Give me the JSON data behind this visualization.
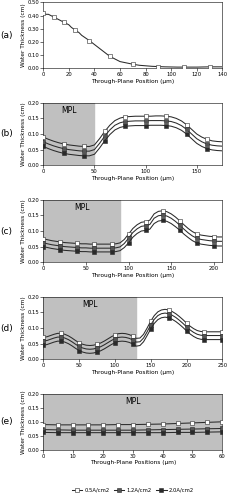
{
  "panel_a": {
    "label": "(a)",
    "xlabel": "Through-Plane Position (μm)",
    "ylabel": "Water Thickness (cm)",
    "xlim": [
      0,
      140
    ],
    "ylim": [
      0,
      0.5
    ],
    "yticks": [
      0.0,
      0.1,
      0.2,
      0.3,
      0.4,
      0.5
    ],
    "xticks": [
      0,
      20,
      40,
      60,
      80,
      100,
      120,
      140
    ],
    "mpl_region": null,
    "x": [
      0,
      2,
      4,
      6,
      8,
      10,
      12,
      14,
      16,
      18,
      20,
      22,
      25,
      28,
      30,
      33,
      36,
      40,
      44,
      48,
      52,
      56,
      60,
      65,
      70,
      75,
      80,
      85,
      90,
      95,
      100,
      105,
      110,
      115,
      120,
      125,
      130,
      135,
      140
    ],
    "curves": [
      [
        0.42,
        0.41,
        0.41,
        0.4,
        0.39,
        0.38,
        0.37,
        0.36,
        0.35,
        0.34,
        0.33,
        0.31,
        0.29,
        0.27,
        0.25,
        0.23,
        0.21,
        0.18,
        0.15,
        0.12,
        0.09,
        0.07,
        0.05,
        0.04,
        0.03,
        0.022,
        0.018,
        0.014,
        0.012,
        0.01,
        0.009,
        0.008,
        0.008,
        0.008,
        0.008,
        0.009,
        0.01,
        0.01,
        0.01
      ]
    ]
  },
  "panel_b": {
    "label": "(b)",
    "xlabel": "Through-Plane Position (μm)",
    "ylabel": "Water Thickness (cm)",
    "xlim": [
      0,
      175
    ],
    "ylim": [
      0,
      0.2
    ],
    "yticks": [
      0.0,
      0.05,
      0.1,
      0.15,
      0.2
    ],
    "xticks": [
      0,
      50,
      100,
      150
    ],
    "mpl_region": [
      0,
      50
    ],
    "x": [
      0,
      5,
      10,
      15,
      20,
      25,
      30,
      35,
      40,
      45,
      50,
      55,
      60,
      65,
      70,
      75,
      80,
      85,
      90,
      95,
      100,
      105,
      110,
      115,
      120,
      125,
      130,
      135,
      140,
      145,
      150,
      155,
      160,
      165,
      170,
      175
    ],
    "curves": [
      [
        0.09,
        0.083,
        0.077,
        0.072,
        0.068,
        0.065,
        0.063,
        0.061,
        0.06,
        0.06,
        0.065,
        0.085,
        0.108,
        0.128,
        0.143,
        0.151,
        0.155,
        0.156,
        0.157,
        0.157,
        0.157,
        0.157,
        0.158,
        0.158,
        0.157,
        0.155,
        0.15,
        0.142,
        0.13,
        0.115,
        0.1,
        0.09,
        0.083,
        0.078,
        0.076,
        0.075
      ],
      [
        0.075,
        0.068,
        0.062,
        0.057,
        0.053,
        0.05,
        0.048,
        0.046,
        0.045,
        0.045,
        0.05,
        0.07,
        0.093,
        0.113,
        0.128,
        0.136,
        0.14,
        0.141,
        0.142,
        0.142,
        0.142,
        0.143,
        0.143,
        0.143,
        0.142,
        0.14,
        0.135,
        0.127,
        0.115,
        0.1,
        0.085,
        0.075,
        0.068,
        0.064,
        0.062,
        0.061
      ],
      [
        0.06,
        0.053,
        0.047,
        0.042,
        0.038,
        0.035,
        0.033,
        0.031,
        0.03,
        0.03,
        0.035,
        0.055,
        0.078,
        0.098,
        0.113,
        0.121,
        0.125,
        0.126,
        0.127,
        0.127,
        0.127,
        0.128,
        0.128,
        0.128,
        0.127,
        0.125,
        0.12,
        0.112,
        0.1,
        0.085,
        0.07,
        0.06,
        0.053,
        0.049,
        0.047,
        0.046
      ]
    ]
  },
  "panel_c": {
    "label": "(c)",
    "xlabel": "Through-Plane Position (μm)",
    "ylabel": "Water Thickness (cm)",
    "xlim": [
      0,
      210
    ],
    "ylim": [
      0,
      0.2
    ],
    "yticks": [
      0.0,
      0.05,
      0.1,
      0.15,
      0.2
    ],
    "xticks": [
      0,
      50,
      100,
      150,
      200
    ],
    "mpl_region": [
      0,
      90
    ],
    "x": [
      0,
      5,
      10,
      15,
      20,
      25,
      30,
      35,
      40,
      45,
      50,
      55,
      60,
      65,
      70,
      75,
      80,
      85,
      90,
      95,
      100,
      105,
      110,
      115,
      120,
      125,
      130,
      135,
      140,
      145,
      150,
      155,
      160,
      165,
      170,
      175,
      180,
      185,
      190,
      195,
      200,
      205,
      210
    ],
    "curves": [
      [
        0.075,
        0.072,
        0.069,
        0.067,
        0.065,
        0.063,
        0.062,
        0.061,
        0.06,
        0.059,
        0.059,
        0.058,
        0.058,
        0.058,
        0.058,
        0.058,
        0.058,
        0.059,
        0.062,
        0.073,
        0.09,
        0.108,
        0.12,
        0.128,
        0.13,
        0.135,
        0.155,
        0.163,
        0.165,
        0.162,
        0.155,
        0.145,
        0.133,
        0.12,
        0.108,
        0.098,
        0.091,
        0.087,
        0.085,
        0.083,
        0.082,
        0.081,
        0.081
      ],
      [
        0.062,
        0.059,
        0.056,
        0.054,
        0.052,
        0.05,
        0.049,
        0.048,
        0.047,
        0.046,
        0.046,
        0.045,
        0.045,
        0.045,
        0.045,
        0.045,
        0.045,
        0.046,
        0.049,
        0.06,
        0.077,
        0.095,
        0.107,
        0.115,
        0.117,
        0.121,
        0.141,
        0.149,
        0.151,
        0.148,
        0.141,
        0.131,
        0.119,
        0.106,
        0.094,
        0.084,
        0.077,
        0.073,
        0.071,
        0.069,
        0.068,
        0.067,
        0.067
      ],
      [
        0.05,
        0.047,
        0.044,
        0.042,
        0.04,
        0.038,
        0.037,
        0.036,
        0.035,
        0.034,
        0.034,
        0.033,
        0.033,
        0.033,
        0.033,
        0.033,
        0.033,
        0.034,
        0.037,
        0.047,
        0.062,
        0.08,
        0.092,
        0.1,
        0.102,
        0.106,
        0.124,
        0.132,
        0.134,
        0.131,
        0.124,
        0.114,
        0.103,
        0.09,
        0.079,
        0.069,
        0.062,
        0.058,
        0.056,
        0.054,
        0.053,
        0.052,
        0.052
      ]
    ]
  },
  "panel_d": {
    "label": "(d)",
    "xlabel": "Through-Plane Position (μm)",
    "ylabel": "Water Thickness (cm)",
    "xlim": [
      0,
      250
    ],
    "ylim": [
      0,
      0.2
    ],
    "yticks": [
      0.0,
      0.05,
      0.1,
      0.15,
      0.2
    ],
    "xticks": [
      0,
      50,
      100,
      150,
      200,
      250
    ],
    "mpl_region": [
      0,
      130
    ],
    "x": [
      0,
      5,
      10,
      15,
      20,
      25,
      30,
      35,
      40,
      45,
      50,
      55,
      60,
      65,
      70,
      75,
      80,
      85,
      90,
      95,
      100,
      105,
      110,
      115,
      120,
      125,
      130,
      135,
      140,
      145,
      150,
      155,
      160,
      165,
      170,
      175,
      180,
      185,
      190,
      195,
      200,
      205,
      210,
      215,
      220,
      225,
      230,
      235,
      240,
      245,
      250
    ],
    "curves": [
      [
        0.07,
        0.072,
        0.076,
        0.08,
        0.083,
        0.083,
        0.08,
        0.075,
        0.068,
        0.06,
        0.053,
        0.048,
        0.045,
        0.044,
        0.045,
        0.048,
        0.052,
        0.058,
        0.065,
        0.072,
        0.078,
        0.082,
        0.083,
        0.082,
        0.079,
        0.074,
        0.067,
        0.068,
        0.08,
        0.1,
        0.122,
        0.14,
        0.152,
        0.158,
        0.16,
        0.158,
        0.153,
        0.146,
        0.137,
        0.127,
        0.116,
        0.106,
        0.098,
        0.092,
        0.089,
        0.088,
        0.088,
        0.088,
        0.088,
        0.088,
        0.088
      ],
      [
        0.058,
        0.06,
        0.064,
        0.068,
        0.071,
        0.071,
        0.068,
        0.063,
        0.056,
        0.048,
        0.041,
        0.036,
        0.033,
        0.032,
        0.033,
        0.036,
        0.04,
        0.046,
        0.053,
        0.06,
        0.066,
        0.07,
        0.071,
        0.07,
        0.067,
        0.062,
        0.055,
        0.056,
        0.068,
        0.088,
        0.11,
        0.128,
        0.14,
        0.146,
        0.148,
        0.146,
        0.141,
        0.134,
        0.125,
        0.115,
        0.104,
        0.094,
        0.086,
        0.08,
        0.077,
        0.076,
        0.076,
        0.076,
        0.076,
        0.076,
        0.076
      ],
      [
        0.045,
        0.047,
        0.051,
        0.055,
        0.058,
        0.058,
        0.055,
        0.05,
        0.043,
        0.035,
        0.028,
        0.023,
        0.02,
        0.019,
        0.02,
        0.023,
        0.027,
        0.033,
        0.04,
        0.047,
        0.053,
        0.057,
        0.058,
        0.057,
        0.054,
        0.049,
        0.042,
        0.044,
        0.056,
        0.076,
        0.097,
        0.115,
        0.127,
        0.133,
        0.135,
        0.133,
        0.128,
        0.121,
        0.112,
        0.102,
        0.091,
        0.081,
        0.073,
        0.067,
        0.064,
        0.063,
        0.063,
        0.063,
        0.063,
        0.063,
        0.063
      ]
    ]
  },
  "panel_e": {
    "label": "(e)",
    "xlabel": "Through-Plane Positions (μm)",
    "ylabel": "Water Thickness (cm)",
    "xlim": [
      0,
      60
    ],
    "ylim": [
      0,
      0.2
    ],
    "yticks": [
      0.0,
      0.05,
      0.1,
      0.15,
      0.2
    ],
    "xticks": [
      0,
      10,
      20,
      30,
      40,
      50,
      60
    ],
    "mpl_region": [
      0,
      60
    ],
    "x": [
      0,
      5,
      10,
      15,
      20,
      25,
      30,
      35,
      40,
      45,
      50,
      55,
      60
    ],
    "curves": [
      [
        0.09,
        0.089,
        0.089,
        0.089,
        0.089,
        0.09,
        0.09,
        0.091,
        0.092,
        0.094,
        0.096,
        0.098,
        0.1
      ],
      [
        0.072,
        0.071,
        0.07,
        0.07,
        0.07,
        0.07,
        0.07,
        0.071,
        0.072,
        0.073,
        0.074,
        0.075,
        0.076
      ],
      [
        0.062,
        0.061,
        0.061,
        0.061,
        0.061,
        0.061,
        0.061,
        0.061,
        0.061,
        0.062,
        0.062,
        0.063,
        0.064
      ]
    ]
  },
  "legend_labels": [
    "0.5A/cm2",
    "1.2A/cm2",
    "2.0A/cm2"
  ],
  "marker": "s",
  "markersize": 2.0,
  "linewidth": 0.75,
  "line_color": "#2a2a2a",
  "mpl_color": "#c0c0c0",
  "mpl_label_fontsize": 5.5,
  "axis_label_fontsize": 4.2,
  "tick_fontsize": 3.8,
  "panel_label_fontsize": 6.5
}
